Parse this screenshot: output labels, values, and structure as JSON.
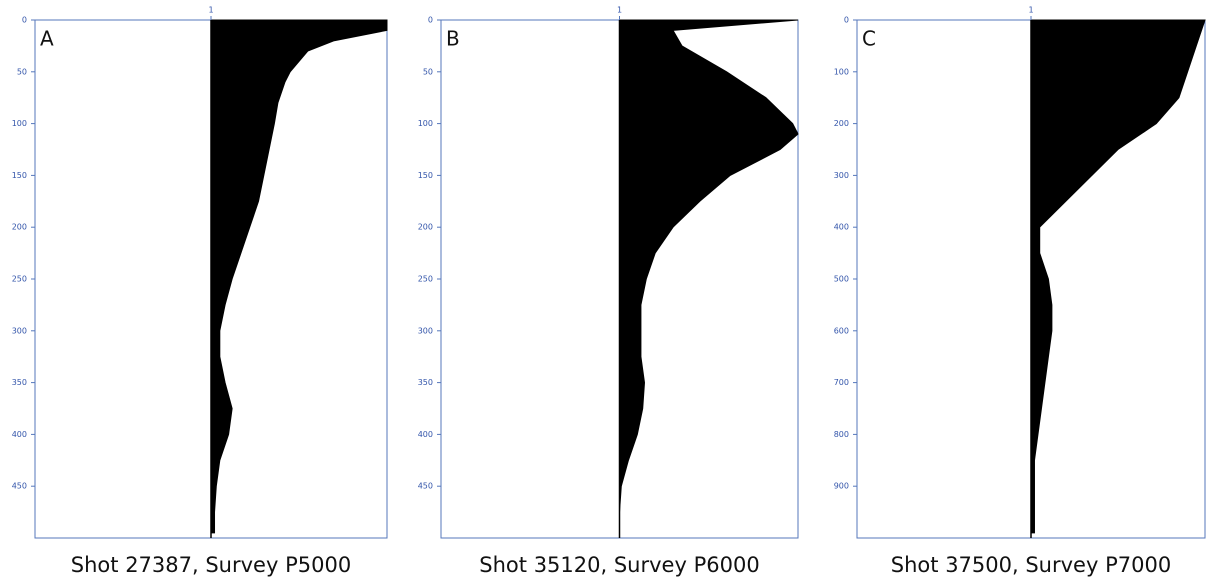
{
  "chart_data": [
    {
      "type": "area",
      "label": "A",
      "title": "Shot 27387, Survey P5000",
      "color": "#000000",
      "depth": [
        0,
        10,
        20,
        30,
        40,
        50,
        60,
        80,
        100,
        125,
        150,
        175,
        200,
        225,
        250,
        275,
        300,
        325,
        350,
        375,
        400,
        425,
        450,
        475,
        495
      ],
      "values": [
        2.0,
        2.0,
        1.7,
        1.55,
        1.5,
        1.45,
        1.42,
        1.38,
        1.36,
        1.33,
        1.3,
        1.27,
        1.22,
        1.17,
        1.12,
        1.08,
        1.05,
        1.05,
        1.08,
        1.12,
        1.1,
        1.05,
        1.03,
        1.02,
        1.02
      ],
      "xlim": [
        0,
        2
      ],
      "xticks": [
        1
      ],
      "ylim": [
        0,
        500
      ],
      "yticks": [
        0,
        50,
        100,
        150,
        200,
        250,
        300,
        350,
        400,
        450
      ]
    },
    {
      "type": "area",
      "label": "B",
      "title": "Shot 35120, Survey P6000",
      "color": "#000000",
      "depth": [
        0,
        10,
        25,
        50,
        75,
        100,
        110,
        125,
        150,
        175,
        200,
        225,
        250,
        275,
        300,
        325,
        350,
        375,
        400,
        425,
        450,
        475,
        500
      ],
      "values": [
        2.0,
        1.3,
        1.35,
        1.6,
        1.82,
        1.97,
        2.0,
        1.9,
        1.62,
        1.45,
        1.3,
        1.2,
        1.15,
        1.12,
        1.12,
        1.12,
        1.14,
        1.13,
        1.1,
        1.05,
        1.01,
        1.0,
        1.0
      ],
      "xlim": [
        0,
        2
      ],
      "xticks": [
        1
      ],
      "ylim": [
        0,
        500
      ],
      "yticks": [
        0,
        50,
        100,
        150,
        200,
        250,
        300,
        350,
        400,
        450
      ]
    },
    {
      "type": "area",
      "label": "C",
      "title": "Shot 37500, Survey P7000",
      "color": "#000000",
      "depth": [
        0,
        50,
        100,
        150,
        200,
        250,
        300,
        350,
        400,
        450,
        500,
        550,
        600,
        650,
        700,
        750,
        800,
        850,
        900,
        950,
        990
      ],
      "values": [
        2.0,
        1.95,
        1.9,
        1.85,
        1.72,
        1.5,
        1.35,
        1.2,
        1.05,
        1.05,
        1.1,
        1.12,
        1.12,
        1.1,
        1.08,
        1.06,
        1.04,
        1.02,
        1.02,
        1.02,
        1.02
      ],
      "xlim": [
        0,
        2
      ],
      "xticks": [
        1
      ],
      "ylim": [
        0,
        1000
      ],
      "yticks": [
        0,
        100,
        200,
        300,
        400,
        500,
        600,
        700,
        800,
        900
      ]
    }
  ]
}
